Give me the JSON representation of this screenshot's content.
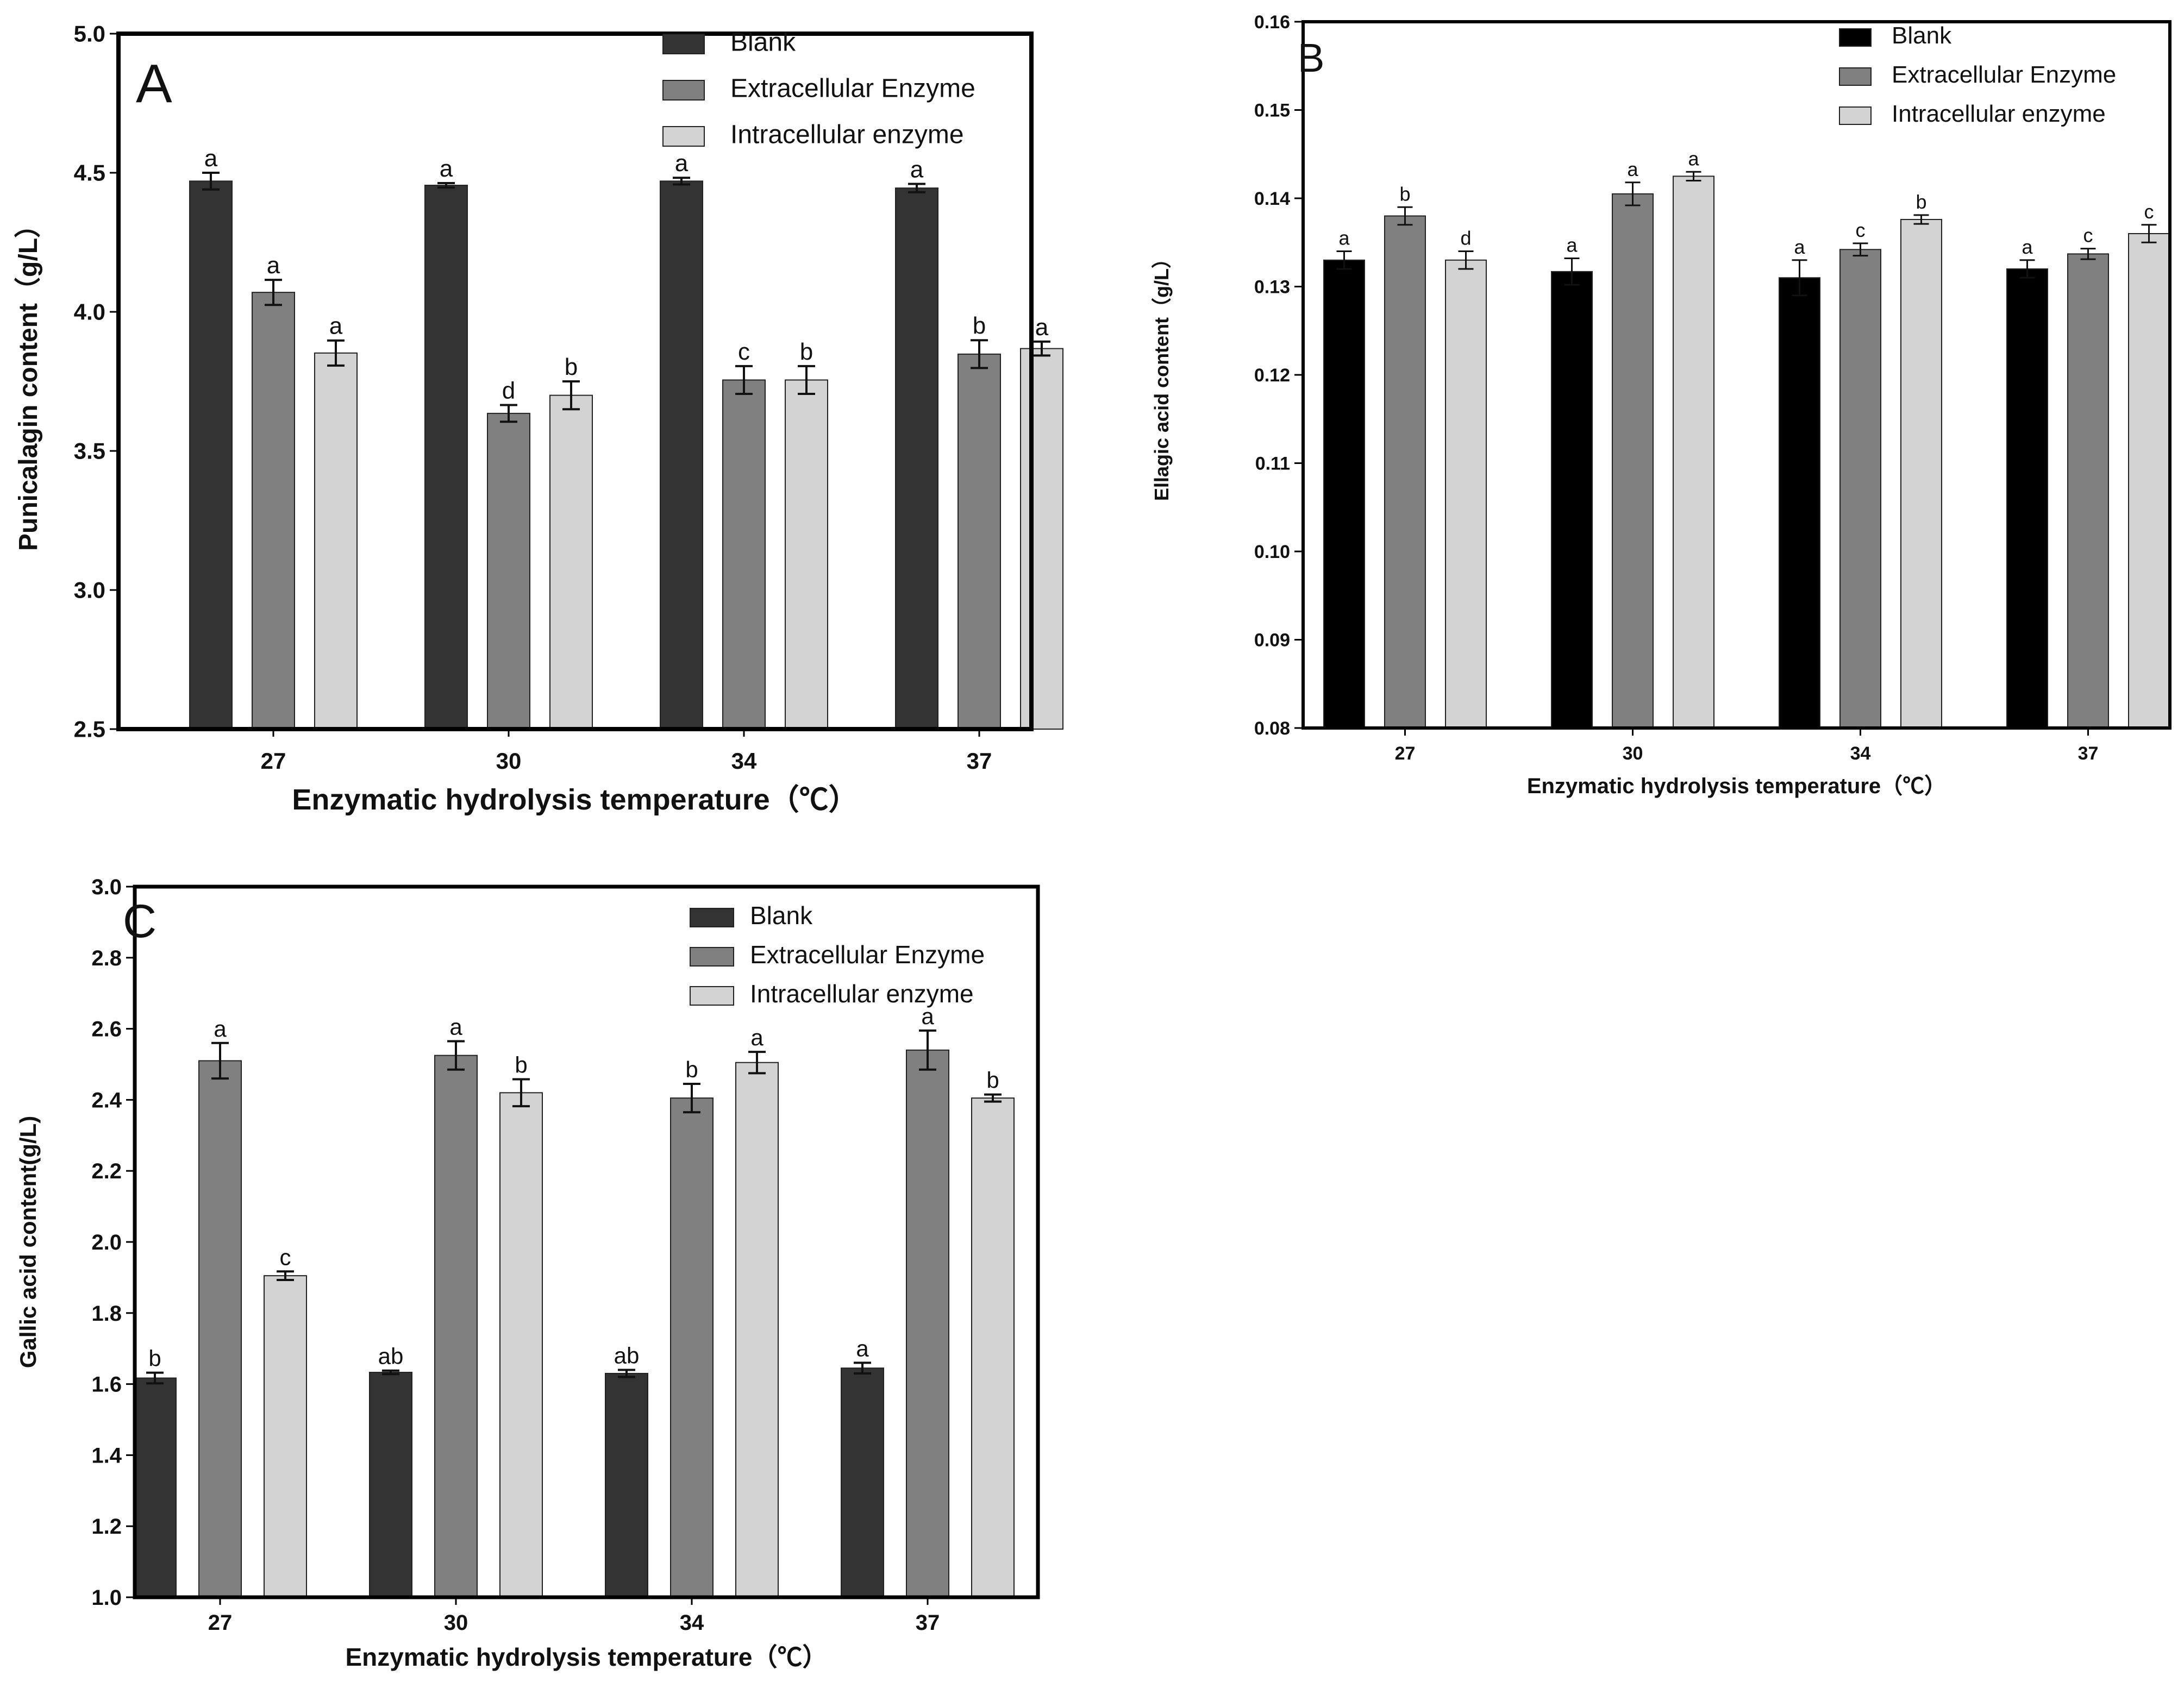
{
  "colors": {
    "blank_ac": "#333333",
    "blank_b": "#000000",
    "extracellular": "#808080",
    "intracellular": "#d3d3d3",
    "axis": "#000000"
  },
  "chart_data": [
    {
      "panel": "A",
      "type": "bar",
      "panel_label": "A",
      "xlabel": "Enzymatic hydrolysis temperature（℃）",
      "ylabel": "Punicalagin content（g/L）",
      "categories": [
        "27",
        "30",
        "34",
        "37"
      ],
      "ylim": [
        2.5,
        5.0
      ],
      "yticks": [
        2.5,
        3.0,
        3.5,
        4.0,
        4.5,
        5.0
      ],
      "ytick_labels": [
        "2.5",
        "3.0",
        "3.5",
        "4.0",
        "4.5",
        "5.0"
      ],
      "legend_position": "top-right",
      "series": [
        {
          "name": "Blank",
          "values": [
            4.47,
            4.455,
            4.47,
            4.445
          ],
          "errors": [
            0.03,
            0.008,
            0.012,
            0.015
          ],
          "letters": [
            "a",
            "a",
            "a",
            "a"
          ]
        },
        {
          "name": "Extracellular Enzyme",
          "values": [
            4.07,
            3.635,
            3.755,
            3.848
          ],
          "errors": [
            0.045,
            0.03,
            0.05,
            0.05
          ],
          "letters": [
            "a",
            "d",
            "c",
            "b"
          ]
        },
        {
          "name": "Intracellular enzyme",
          "values": [
            3.852,
            3.7,
            3.755,
            3.868
          ],
          "errors": [
            0.045,
            0.05,
            0.05,
            0.025
          ],
          "letters": [
            "a",
            "b",
            "b",
            "a"
          ]
        }
      ]
    },
    {
      "panel": "B",
      "type": "bar",
      "panel_label": "B",
      "xlabel": "Enzymatic hydrolysis temperature（℃）",
      "ylabel": "Ellagic acid content（g/L）",
      "categories": [
        "27",
        "30",
        "34",
        "37"
      ],
      "ylim": [
        0.08,
        0.16
      ],
      "yticks": [
        0.08,
        0.09,
        0.1,
        0.11,
        0.12,
        0.13,
        0.14,
        0.15,
        0.16
      ],
      "ytick_labels": [
        "0.08",
        "0.09",
        "0.10",
        "0.11",
        "0.12",
        "0.13",
        "0.14",
        "0.15",
        "0.16"
      ],
      "legend_position": "top-right",
      "series": [
        {
          "name": "Blank",
          "values": [
            0.133,
            0.1317,
            0.131,
            0.132
          ],
          "errors": [
            0.001,
            0.0015,
            0.002,
            0.001
          ],
          "letters": [
            "a",
            "a",
            "a",
            "a"
          ]
        },
        {
          "name": "Extracellular Enzyme",
          "values": [
            0.138,
            0.1405,
            0.1342,
            0.1337
          ],
          "errors": [
            0.001,
            0.0013,
            0.0007,
            0.0006
          ],
          "letters": [
            "b",
            "a",
            "c",
            "c"
          ]
        },
        {
          "name": "Intracellular enzyme",
          "values": [
            0.133,
            0.1425,
            0.1376,
            0.136
          ],
          "errors": [
            0.001,
            0.0005,
            0.0005,
            0.001
          ],
          "letters": [
            "d",
            "a",
            "b",
            "c"
          ]
        }
      ]
    },
    {
      "panel": "C",
      "type": "bar",
      "panel_label": "C",
      "xlabel": "Enzymatic hydrolysis temperature（℃）",
      "ylabel": "Gallic acid content(g/L)",
      "categories": [
        "27",
        "30",
        "34",
        "37"
      ],
      "ylim": [
        1.0,
        3.0
      ],
      "yticks": [
        1.0,
        1.2,
        1.4,
        1.6,
        1.8,
        2.0,
        2.2,
        2.4,
        2.6,
        2.8,
        3.0
      ],
      "ytick_labels": [
        "1.0",
        "1.2",
        "1.4",
        "1.6",
        "1.8",
        "2.0",
        "2.2",
        "2.4",
        "2.6",
        "2.8",
        "3.0"
      ],
      "legend_position": "top-right",
      "series": [
        {
          "name": "Blank",
          "values": [
            1.617,
            1.633,
            1.63,
            1.645
          ],
          "errors": [
            0.015,
            0.005,
            0.01,
            0.015
          ],
          "letters": [
            "b",
            "ab",
            "ab",
            "a"
          ]
        },
        {
          "name": "Extracellular Enzyme",
          "values": [
            2.51,
            2.525,
            2.405,
            2.54
          ],
          "errors": [
            0.05,
            0.04,
            0.04,
            0.055
          ],
          "letters": [
            "a",
            "a",
            "b",
            "a"
          ]
        },
        {
          "name": "Intracellular enzyme",
          "values": [
            1.905,
            2.42,
            2.505,
            2.405
          ],
          "errors": [
            0.012,
            0.038,
            0.03,
            0.01
          ],
          "letters": [
            "c",
            "b",
            "a",
            "b"
          ]
        }
      ]
    }
  ]
}
